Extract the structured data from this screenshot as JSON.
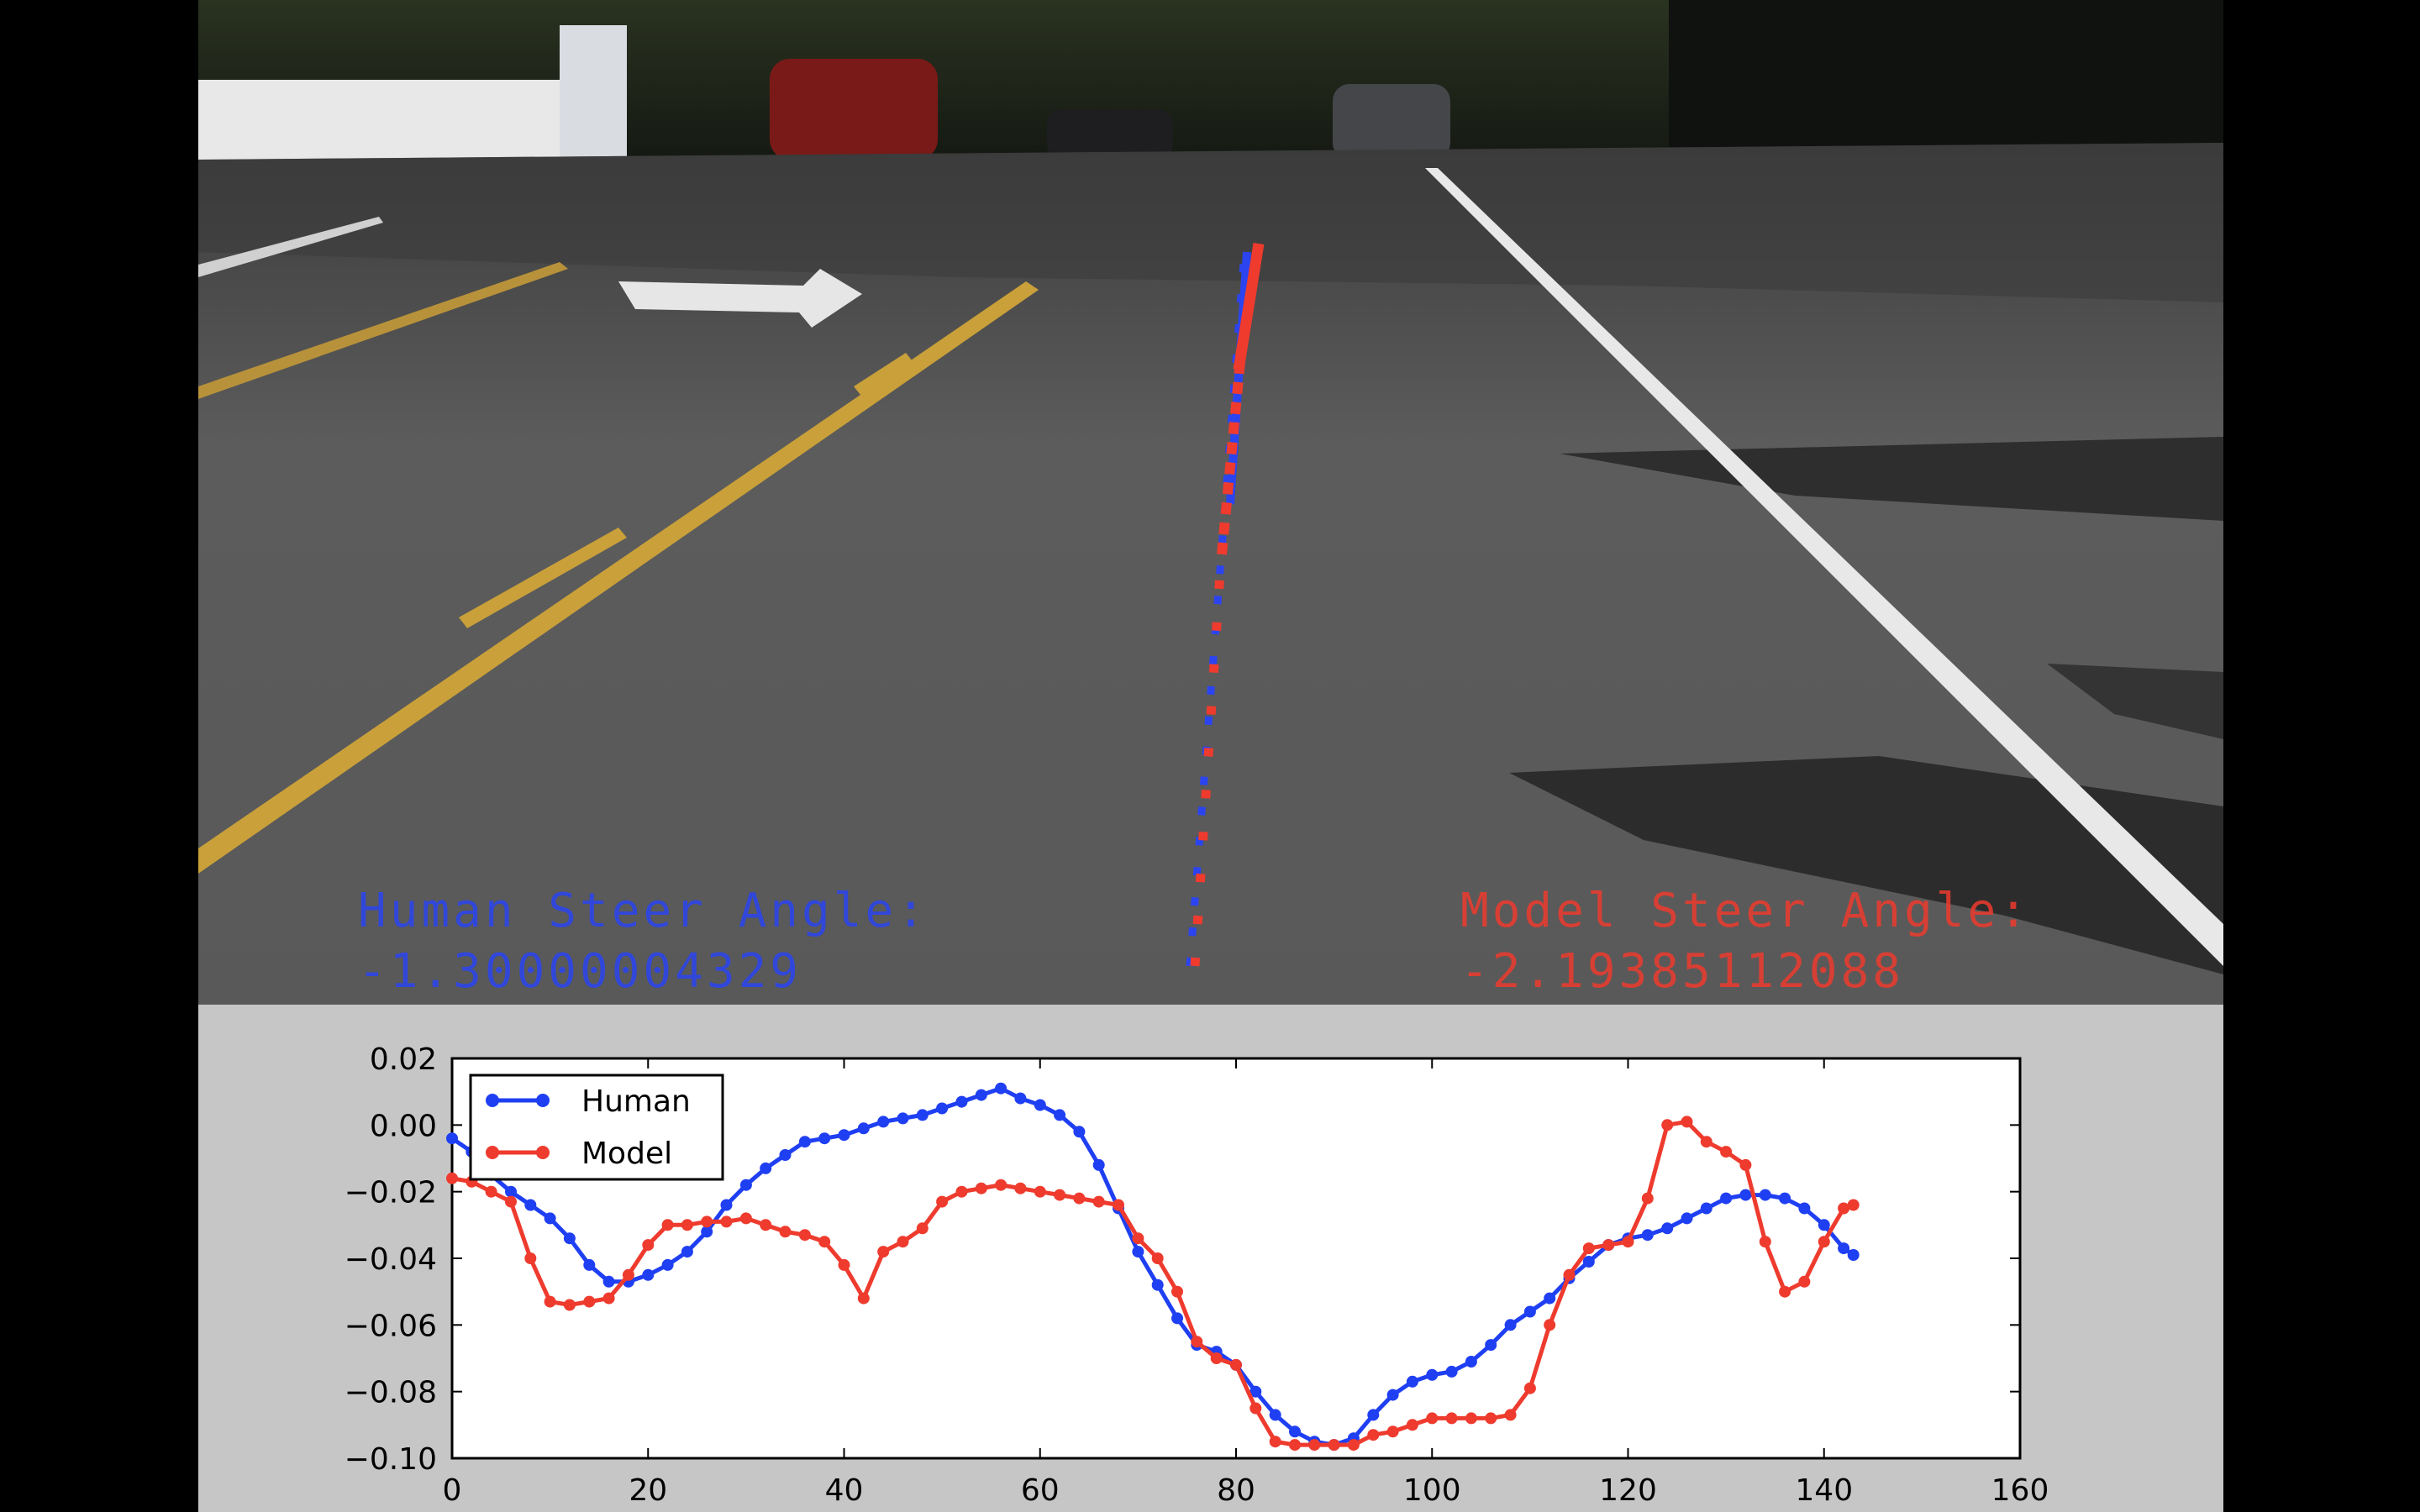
{
  "overlay": {
    "human_label": "Human Steer Angle:",
    "human_value": "-1.30000004329",
    "model_label": "Model Steer Angle:",
    "model_value": "-2.19385112088",
    "human_color": "#2b44f0",
    "model_color": "#ee3b2e"
  },
  "chart_data": {
    "type": "line",
    "title": "",
    "xlabel": "",
    "ylabel": "",
    "xlim": [
      0,
      160
    ],
    "ylim": [
      -0.1,
      0.02
    ],
    "xticks": [
      0,
      20,
      40,
      60,
      80,
      100,
      120,
      140,
      160
    ],
    "yticks": [
      0.02,
      0.0,
      -0.02,
      -0.04,
      -0.06,
      -0.08,
      -0.1
    ],
    "ytick_labels": [
      "0.02",
      "0.00",
      "−0.02",
      "−0.04",
      "−0.06",
      "−0.08",
      "−0.10"
    ],
    "legend_position": "top-left",
    "grid": false,
    "series": [
      {
        "name": "Human",
        "color": "#1f3ff2",
        "marker": "circle",
        "x": [
          0,
          2,
          4,
          6,
          8,
          10,
          12,
          14,
          16,
          18,
          20,
          22,
          24,
          26,
          28,
          30,
          32,
          34,
          36,
          38,
          40,
          42,
          44,
          46,
          48,
          50,
          52,
          54,
          56,
          58,
          60,
          62,
          64,
          66,
          68,
          70,
          72,
          74,
          76,
          78,
          80,
          82,
          84,
          86,
          88,
          90,
          92,
          94,
          96,
          98,
          100,
          102,
          104,
          106,
          108,
          110,
          112,
          114,
          116,
          118,
          120,
          122,
          124,
          126,
          128,
          130,
          132,
          134,
          136,
          138,
          140,
          142,
          143
        ],
        "y": [
          -0.004,
          -0.008,
          -0.015,
          -0.02,
          -0.024,
          -0.028,
          -0.034,
          -0.042,
          -0.047,
          -0.047,
          -0.045,
          -0.042,
          -0.038,
          -0.032,
          -0.024,
          -0.018,
          -0.013,
          -0.009,
          -0.005,
          -0.004,
          -0.003,
          -0.001,
          0.001,
          0.002,
          0.003,
          0.005,
          0.007,
          0.009,
          0.011,
          0.008,
          0.006,
          0.003,
          -0.002,
          -0.012,
          -0.025,
          -0.038,
          -0.048,
          -0.058,
          -0.066,
          -0.068,
          -0.072,
          -0.08,
          -0.087,
          -0.092,
          -0.095,
          -0.096,
          -0.094,
          -0.087,
          -0.081,
          -0.077,
          -0.075,
          -0.074,
          -0.071,
          -0.066,
          -0.06,
          -0.056,
          -0.052,
          -0.046,
          -0.041,
          -0.036,
          -0.034,
          -0.033,
          -0.031,
          -0.028,
          -0.025,
          -0.022,
          -0.021,
          -0.021,
          -0.022,
          -0.025,
          -0.03,
          -0.037,
          -0.039
        ]
      },
      {
        "name": "Model",
        "color": "#ee3b2e",
        "marker": "circle",
        "x": [
          0,
          2,
          4,
          6,
          8,
          10,
          12,
          14,
          16,
          18,
          20,
          22,
          24,
          26,
          28,
          30,
          32,
          34,
          36,
          38,
          40,
          42,
          44,
          46,
          48,
          50,
          52,
          54,
          56,
          58,
          60,
          62,
          64,
          66,
          68,
          70,
          72,
          74,
          76,
          78,
          80,
          82,
          84,
          86,
          88,
          90,
          92,
          94,
          96,
          98,
          100,
          102,
          104,
          106,
          108,
          110,
          112,
          114,
          116,
          118,
          120,
          122,
          124,
          126,
          128,
          130,
          132,
          134,
          136,
          138,
          140,
          142,
          143
        ],
        "y": [
          -0.016,
          -0.017,
          -0.02,
          -0.023,
          -0.04,
          -0.053,
          -0.054,
          -0.053,
          -0.052,
          -0.045,
          -0.036,
          -0.03,
          -0.03,
          -0.029,
          -0.029,
          -0.028,
          -0.03,
          -0.032,
          -0.033,
          -0.035,
          -0.042,
          -0.052,
          -0.038,
          -0.035,
          -0.031,
          -0.023,
          -0.02,
          -0.019,
          -0.018,
          -0.019,
          -0.02,
          -0.021,
          -0.022,
          -0.023,
          -0.024,
          -0.034,
          -0.04,
          -0.05,
          -0.065,
          -0.07,
          -0.072,
          -0.085,
          -0.095,
          -0.096,
          -0.096,
          -0.096,
          -0.096,
          -0.093,
          -0.092,
          -0.09,
          -0.088,
          -0.088,
          -0.088,
          -0.088,
          -0.087,
          -0.079,
          -0.06,
          -0.045,
          -0.037,
          -0.036,
          -0.035,
          -0.022,
          0.0,
          0.001,
          -0.005,
          -0.008,
          -0.012,
          -0.035,
          -0.05,
          -0.047,
          -0.035,
          -0.025,
          -0.024
        ]
      }
    ]
  }
}
